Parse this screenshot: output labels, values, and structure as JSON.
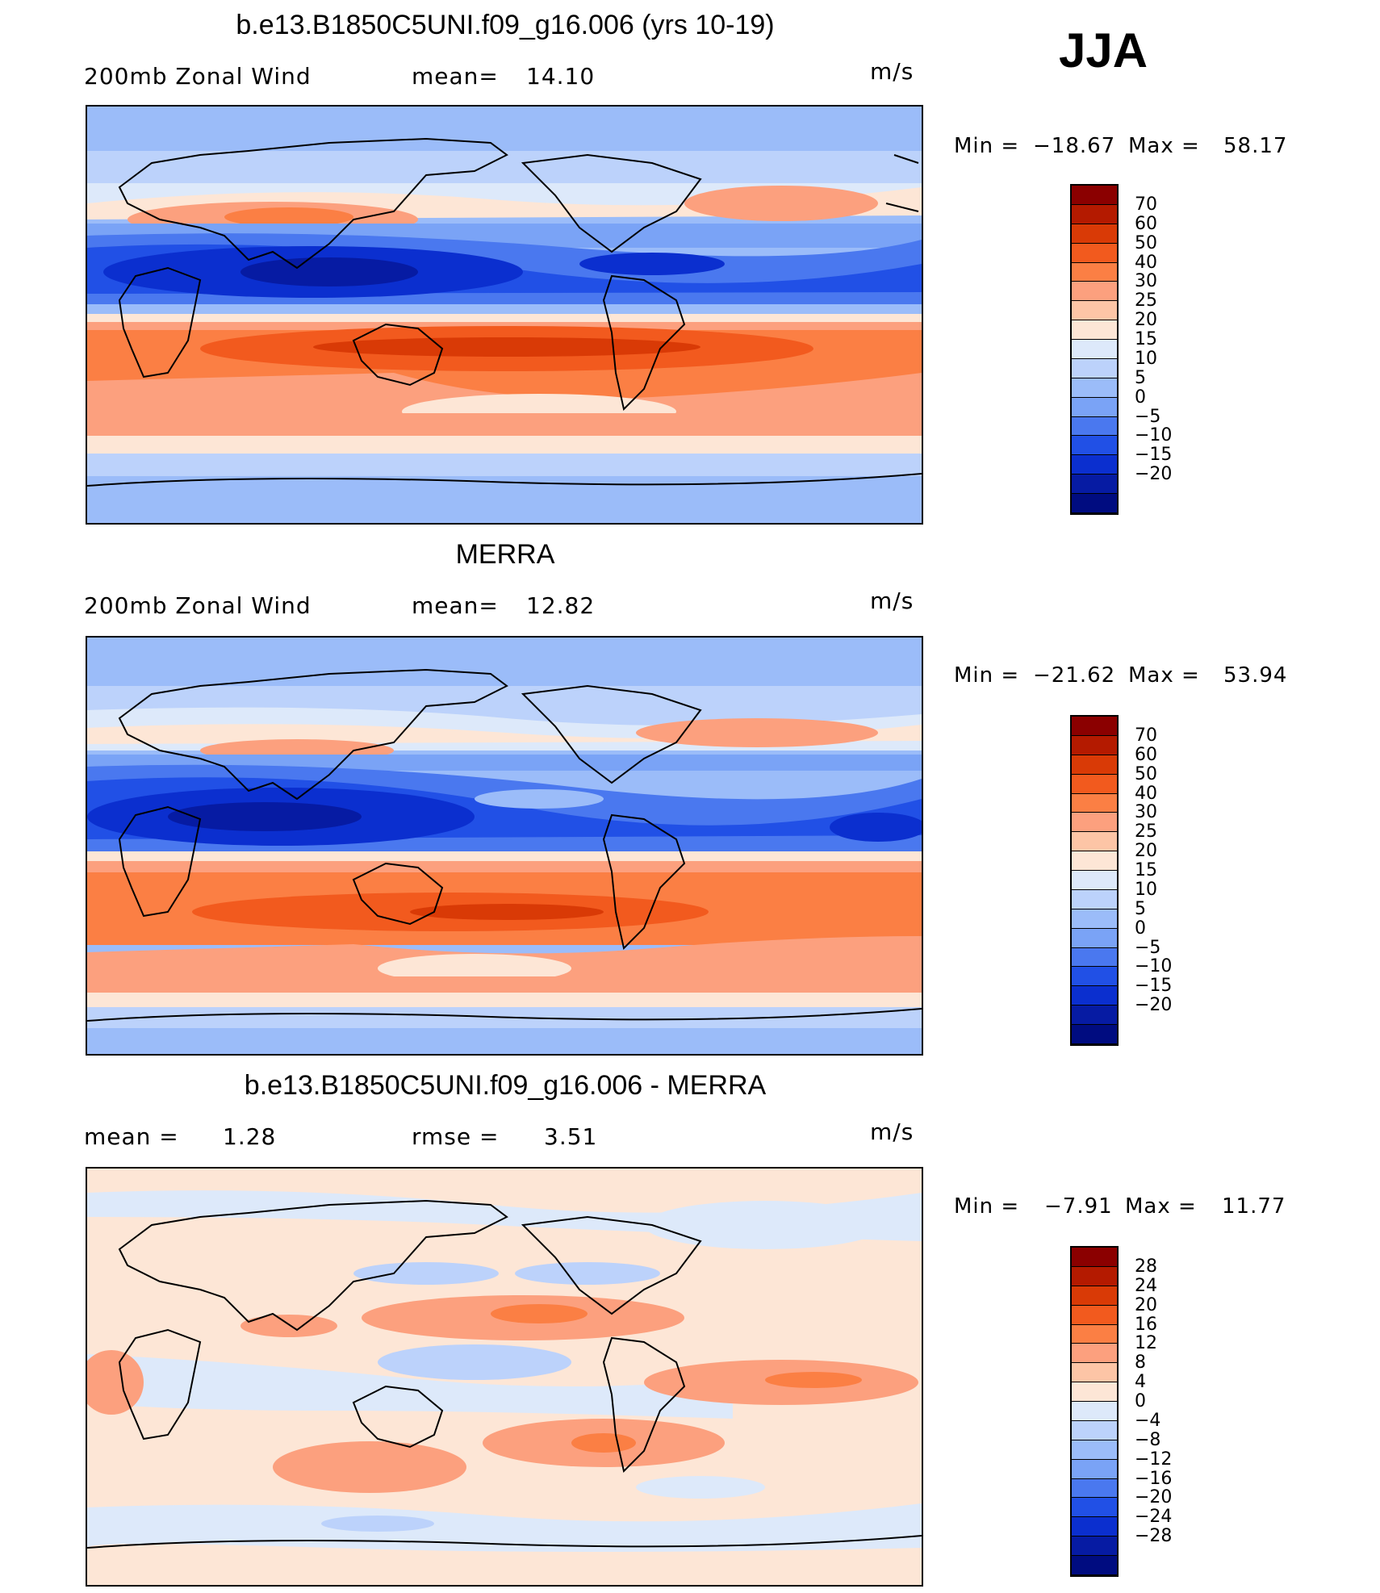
{
  "season": "JJA",
  "units": "m/s",
  "panels": [
    {
      "title": "b.e13.B1850C5UNI.f09_g16.006 (yrs 10-19)",
      "left_label": "200mb  Zonal  Wind",
      "mid_label": "mean=",
      "mid_value": "14.10",
      "min_label": "Min  =",
      "min_value": "−18.67",
      "max_label": "Max  =",
      "max_value": "58.17"
    },
    {
      "title": "MERRA",
      "left_label": "200mb  Zonal  Wind",
      "mid_label": "mean=",
      "mid_value": "12.82",
      "min_label": "Min  =",
      "min_value": "−21.62",
      "max_label": "Max  =",
      "max_value": "53.94"
    },
    {
      "title": "b.e13.B1850C5UNI.f09_g16.006 - MERRA",
      "left_label": "mean  =",
      "left_value": "1.28",
      "mid_label": "rmse  =",
      "mid_value": "3.51",
      "min_label": "Min  =",
      "min_value": "−7.91",
      "max_label": "Max  =",
      "max_value": "11.77"
    }
  ],
  "colorbar_abs": {
    "labels": [
      "70",
      "60",
      "50",
      "40",
      "30",
      "25",
      "20",
      "15",
      "10",
      "5",
      "0",
      "−5",
      "−10",
      "−15",
      "−20"
    ],
    "colors": [
      "#8b0000",
      "#b41a00",
      "#d93a06",
      "#f25a1e",
      "#fb7f44",
      "#fca07e",
      "#fdc5a6",
      "#fde6d6",
      "#dde9fa",
      "#bcd2fb",
      "#9bbcf9",
      "#7aa3f6",
      "#4a78ef",
      "#2150e6",
      "#0b2fcf",
      "#061ba3",
      "#000c80"
    ]
  },
  "colorbar_diff": {
    "labels": [
      "28",
      "24",
      "20",
      "16",
      "12",
      "8",
      "4",
      "0",
      "−4",
      "−8",
      "−12",
      "−16",
      "−20",
      "−24",
      "−28"
    ],
    "colors": [
      "#8b0000",
      "#b41a00",
      "#d93a06",
      "#f25a1e",
      "#fb7f44",
      "#fca07e",
      "#fdc5a6",
      "#fde6d6",
      "#dde9fa",
      "#bcd2fb",
      "#9bbcf9",
      "#7aa3f6",
      "#4a78ef",
      "#2150e6",
      "#0b2fcf",
      "#061ba3",
      "#000c80"
    ]
  }
}
